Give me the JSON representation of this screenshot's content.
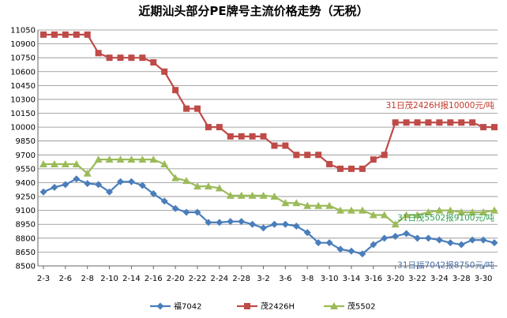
{
  "chart_data": {
    "type": "line",
    "title": "近期汕头部分PE牌号主流价格走势（无税）",
    "xlabel": "",
    "ylabel": "",
    "ylim": [
      8500,
      11050
    ],
    "yticks": [
      8500,
      8650,
      8800,
      8950,
      9100,
      9250,
      9400,
      9550,
      9700,
      9850,
      10000,
      10150,
      10300,
      10450,
      10600,
      10750,
      10900,
      11050
    ],
    "grid": true,
    "legend_position": "bottom",
    "x_tick_labels": [
      "2-3",
      "2-6",
      "2-8",
      "2-10",
      "2-14",
      "2-16",
      "2-20",
      "2-22",
      "2-24",
      "2-28",
      "3-2",
      "3-6",
      "3-8",
      "3-10",
      "3-14",
      "3-16",
      "3-20",
      "3-22",
      "3-24",
      "3-28",
      "3-30"
    ],
    "series": [
      {
        "name": "福7042",
        "color": "#4A7EBB",
        "marker": "diamond",
        "values": [
          9300,
          9350,
          9380,
          9440,
          9390,
          9380,
          9300,
          9410,
          9410,
          9370,
          9280,
          9200,
          9120,
          9080,
          9080,
          8970,
          8970,
          8980,
          8980,
          8950,
          8910,
          8950,
          8950,
          8930,
          8860,
          8750,
          8750,
          8680,
          8660,
          8630,
          8730,
          8800,
          8820,
          8850,
          8800,
          8800,
          8780,
          8750,
          8730,
          8780,
          8780,
          8750
        ]
      },
      {
        "name": "茂2426H",
        "color": "#BE4B48",
        "marker": "square",
        "values": [
          11000,
          11000,
          11000,
          11000,
          11000,
          10800,
          10750,
          10750,
          10750,
          10750,
          10700,
          10600,
          10400,
          10200,
          10200,
          10000,
          10000,
          9900,
          9900,
          9900,
          9900,
          9800,
          9800,
          9700,
          9700,
          9700,
          9600,
          9550,
          9550,
          9550,
          9650,
          9700,
          10050,
          10050,
          10050,
          10050,
          10050,
          10050,
          10050,
          10050,
          10000,
          10000
        ]
      },
      {
        "name": "茂5502",
        "color": "#9BBB59",
        "marker": "triangle",
        "values": [
          9600,
          9600,
          9600,
          9600,
          9500,
          9650,
          9650,
          9650,
          9650,
          9650,
          9650,
          9600,
          9450,
          9420,
          9360,
          9360,
          9340,
          9260,
          9260,
          9260,
          9260,
          9250,
          9180,
          9180,
          9150,
          9150,
          9150,
          9100,
          9100,
          9100,
          9050,
          9050,
          8950,
          9050,
          9050,
          9080,
          9100,
          9100,
          9080,
          9080,
          9080,
          9100
        ]
      }
    ],
    "annotations": [
      {
        "series": "茂2426H",
        "text": "31日茂2426H报10000元/吨",
        "color": "#C0392B"
      },
      {
        "series": "茂5502",
        "text": "31日茂5502报9100元/吨",
        "color": "#2E9E4F"
      },
      {
        "series": "福7042",
        "text": "31日福7042报8750元/吨",
        "color": "#4A6FA5"
      }
    ]
  }
}
